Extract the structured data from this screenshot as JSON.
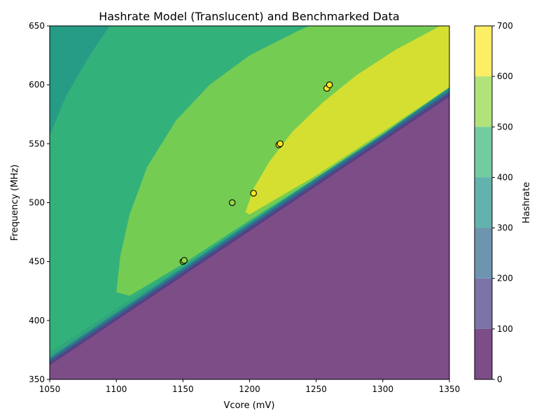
{
  "chart_data": {
    "type": "heatmap",
    "title": "Hashrate Model (Translucent) and Benchmarked Data",
    "xlabel": "Vcore (mV)",
    "ylabel": "Frequency (MHz)",
    "xlim": [
      1050,
      1350
    ],
    "ylim": [
      350,
      650
    ],
    "x_ticks": [
      "1050",
      "1100",
      "1150",
      "1200",
      "1250",
      "1300",
      "1350"
    ],
    "y_ticks": [
      "350",
      "400",
      "450",
      "500",
      "550",
      "600",
      "650"
    ],
    "colorbar": {
      "label": "Hashrate",
      "range": [
        0,
        700
      ],
      "ticks": [
        "0",
        "100",
        "200",
        "300",
        "400",
        "500",
        "600",
        "700"
      ],
      "colors": [
        "#440154",
        "#443983",
        "#31688e",
        "#21918c",
        "#35b779",
        "#90d743",
        "#fde725"
      ]
    },
    "contour_levels": [
      0,
      100,
      200,
      300,
      400,
      500,
      600,
      700
    ],
    "benchmark_points": [
      {
        "x": 1150,
        "y": 450,
        "hashrate": 560
      },
      {
        "x": 1151,
        "y": 451,
        "hashrate": 560
      },
      {
        "x": 1187,
        "y": 500,
        "hashrate": 590
      },
      {
        "x": 1203,
        "y": 508,
        "hashrate": 610
      },
      {
        "x": 1222,
        "y": 549,
        "hashrate": 640
      },
      {
        "x": 1223,
        "y": 550,
        "hashrate": 640
      },
      {
        "x": 1258,
        "y": 597,
        "hashrate": 660
      },
      {
        "x": 1260,
        "y": 600,
        "hashrate": 660
      }
    ]
  }
}
